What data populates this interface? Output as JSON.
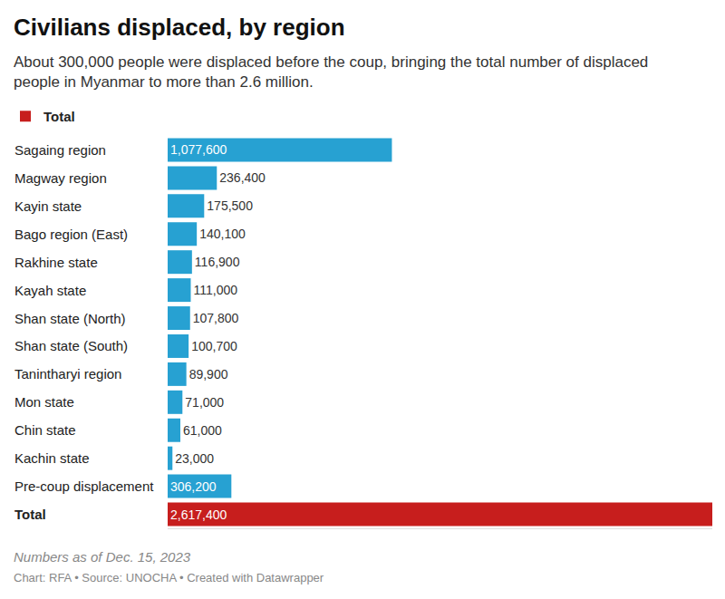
{
  "chart_data": {
    "type": "bar",
    "orientation": "horizontal",
    "title": "Civilians displaced, by region",
    "subtitle": "About 300,000 people were displaced before the coup, bringing the total number of displaced people in Myanmar to more than 2.6 million.",
    "categories": [
      "Sagaing region",
      "Magway region",
      "Kayin state",
      "Bago region (East)",
      "Rakhine state",
      "Kayah state",
      "Shan state (North)",
      "Shan state (South)",
      "Tanintharyi region",
      "Mon state",
      "Chin state",
      "Kachin state",
      "Pre-coup displacement",
      "Total"
    ],
    "series": [
      {
        "color": "#27a1d2",
        "values": [
          1077600,
          236400,
          175500,
          140100,
          116900,
          111000,
          107800,
          100700,
          89900,
          71000,
          61000,
          23000,
          306200,
          null
        ],
        "value_labels": [
          "1,077,600",
          "236,400",
          "175,500",
          "140,100",
          "116,900",
          "111,000",
          "107,800",
          "100,700",
          "89,900",
          "71,000",
          "61,000",
          "23,000",
          "306,200",
          null
        ]
      },
      {
        "name": "Total",
        "color": "#c71e1d",
        "values": [
          null,
          null,
          null,
          null,
          null,
          null,
          null,
          null,
          null,
          null,
          null,
          null,
          null,
          2617400
        ],
        "value_labels": [
          null,
          null,
          null,
          null,
          null,
          null,
          null,
          null,
          null,
          null,
          null,
          null,
          null,
          "2,617,400"
        ]
      }
    ],
    "xlim": [
      0,
      2617400
    ],
    "data_labels": true,
    "tick_labels": "y",
    "grid": false,
    "legend": "top-left",
    "annotations": [
      "Numbers as of Dec. 15, 2023",
      "Chart: RFA • Source: UNOCHA • Created with Datawrapper"
    ]
  }
}
